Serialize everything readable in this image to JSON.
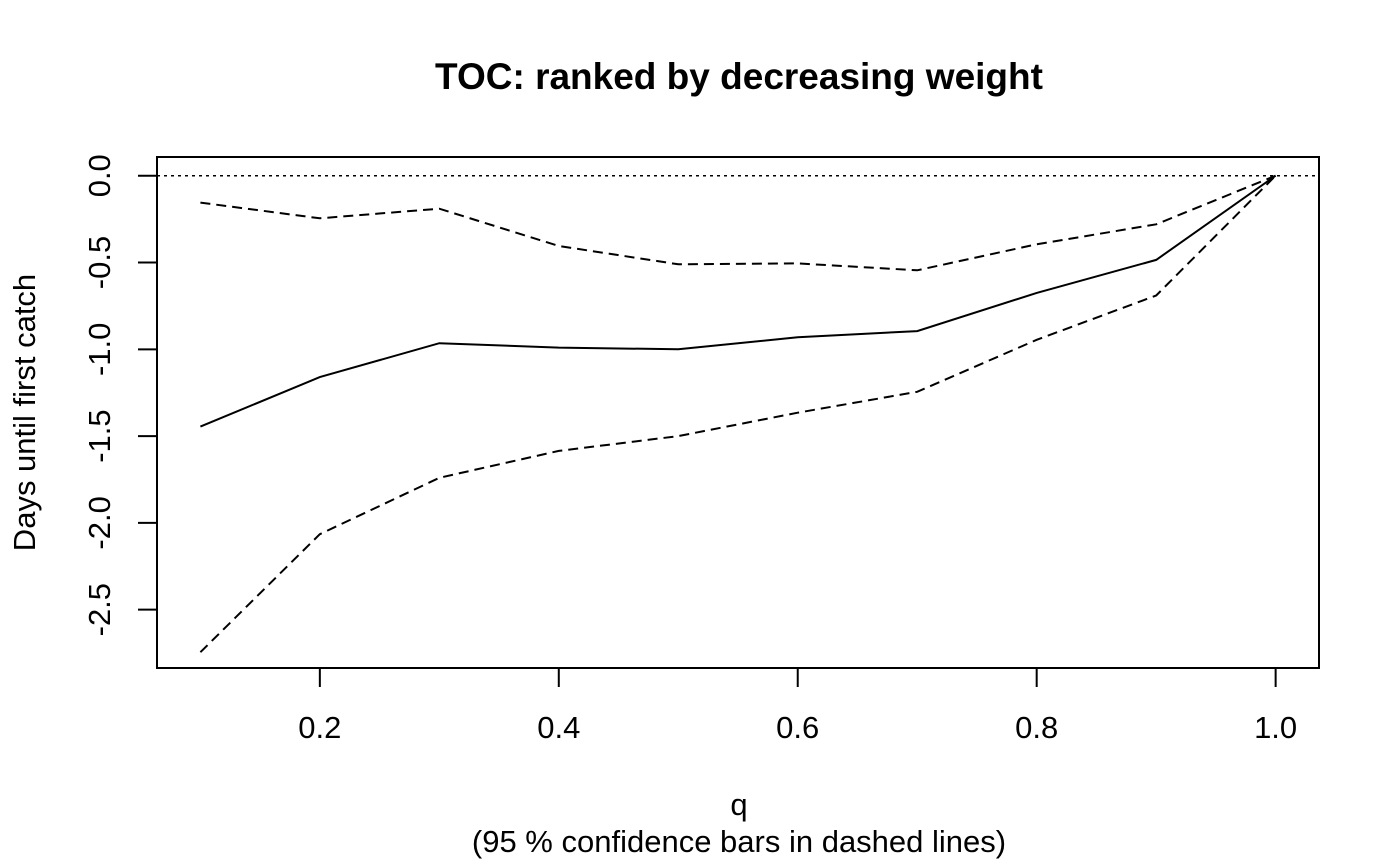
{
  "chart_data": {
    "type": "line",
    "title": "TOC: ranked by decreasing weight",
    "xlabel": "q",
    "subtitle": "(95 % confidence bars in dashed lines)",
    "ylabel": "Days until first catch",
    "xlim": [
      0.0637,
      1.0363
    ],
    "ylim": [
      -2.836,
      0.108
    ],
    "x_ticks": [
      0.2,
      0.4,
      0.6,
      0.8,
      1.0
    ],
    "x_tick_labels": [
      "0.2",
      "0.4",
      "0.6",
      "0.8",
      "1.0"
    ],
    "y_ticks": [
      0.0,
      -0.5,
      -1.0,
      -1.5,
      -2.0,
      -2.5
    ],
    "y_tick_labels": [
      "0.0",
      "-0.5",
      "-1.0",
      "-1.5",
      "-2.0",
      "-2.5"
    ],
    "reference_line": {
      "y": 0.0,
      "style": "dotted"
    },
    "x": [
      0.1,
      0.2,
      0.3,
      0.4,
      0.5,
      0.6,
      0.7,
      0.8,
      0.9,
      1.0
    ],
    "series": [
      {
        "role": "estimate",
        "style": "solid",
        "values": [
          -1.445,
          -1.16,
          -0.965,
          -0.99,
          -1.0,
          -0.93,
          -0.895,
          -0.675,
          -0.485,
          0.0
        ]
      },
      {
        "role": "upper",
        "style": "dashed",
        "values": [
          -0.155,
          -0.245,
          -0.19,
          -0.405,
          -0.51,
          -0.505,
          -0.545,
          -0.395,
          -0.28,
          0.0
        ]
      },
      {
        "role": "lower",
        "style": "dashed",
        "values": [
          -2.745,
          -2.065,
          -1.74,
          -1.585,
          -1.5,
          -1.365,
          -1.245,
          -0.945,
          -0.69,
          0.0
        ]
      }
    ]
  }
}
